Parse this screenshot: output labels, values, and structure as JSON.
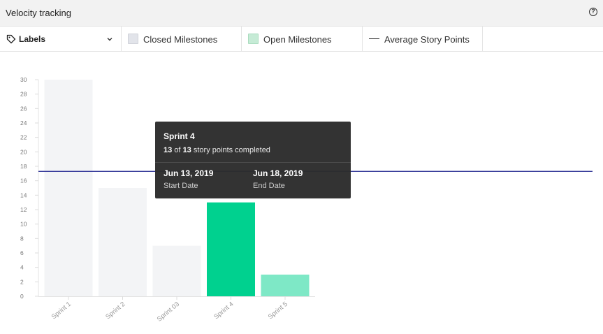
{
  "header": {
    "title": "Velocity tracking",
    "help_icon": "help-circle-icon",
    "help_glyph": "?"
  },
  "filters": {
    "labels_dropdown": {
      "label": "Labels",
      "icon": "tag-icon",
      "chevron": "chevron-down-icon"
    },
    "legend": [
      {
        "label": "Closed Milestones",
        "color": "#e2e4ea"
      },
      {
        "label": "Open Milestones",
        "color": "#c6ebd6"
      },
      {
        "label": "Average Story Points",
        "color": "#222222"
      }
    ]
  },
  "chart_data": {
    "type": "bar",
    "categories": [
      "Sprint 1",
      "Sprint 2",
      "Sprint 03",
      "Sprint 4",
      "Sprint 5"
    ],
    "values": [
      30,
      15,
      7,
      13,
      3
    ],
    "bar_colors": [
      "#f3f4f6",
      "#f3f4f6",
      "#f3f4f6",
      "#00d18f",
      "#7ee8c6"
    ],
    "ylim": [
      0,
      30
    ],
    "yticks": [
      0,
      2,
      4,
      6,
      8,
      10,
      12,
      14,
      16,
      18,
      20,
      22,
      24,
      26,
      28,
      30
    ],
    "average_line": {
      "value": 17.3,
      "color": "#1a1f8c"
    },
    "xlabel": "",
    "ylabel": ""
  },
  "tooltip": {
    "title": "Sprint 4",
    "completed": "13",
    "of_text": "of",
    "total": "13",
    "suffix": "story points completed",
    "start_date": "Jun 13, 2019",
    "start_label": "Start Date",
    "end_date": "Jun 18, 2019",
    "end_label": "End Date"
  }
}
